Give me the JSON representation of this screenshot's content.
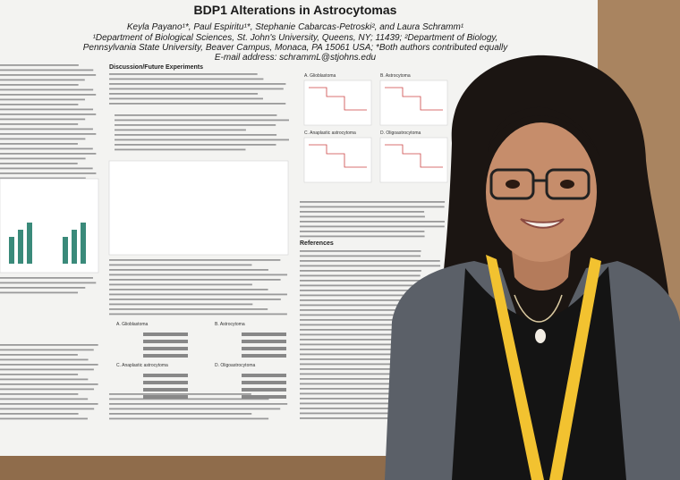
{
  "poster": {
    "title": "BDP1 Alterations in Astrocytomas",
    "authors": "Keyla Payano¹*, Paul Espiritu¹*, Stephanie Cabarcas-Petroski², and Laura Schramm¹",
    "affiliations": [
      "¹Department of Biological Sciences, St. John's University, Queens, NY; 11439; ²Department of Biology,",
      "Pennsylvania State University, Beaver Campus, Monaca, PA 15061 USA; *Both authors contributed equally"
    ],
    "email": "E-mail address: schrammL@stjohns.edu",
    "sections": {
      "discussion": "Discussion/Future Experiments",
      "references": "References"
    },
    "survival_panels": [
      "A. Glioblastoma",
      "B. Astrocytoma",
      "C. Anaplastic astrocytoma",
      "D. Oligoastrocytoma"
    ],
    "alteration_panels": [
      "A. Glioblastoma",
      "B. Astrocytoma",
      "C. Anaplastic astrocytoma",
      "D. Oligoastrocytoma"
    ]
  }
}
